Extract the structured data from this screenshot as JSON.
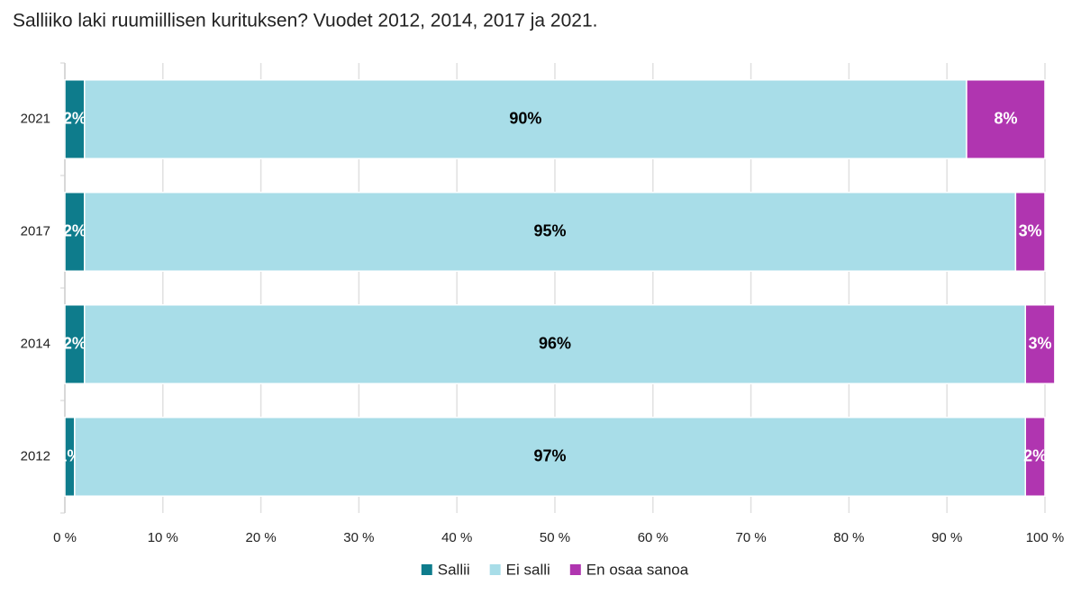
{
  "chart_data": {
    "type": "stacked_bar_horizontal",
    "title": "Salliiko laki ruumiillisen kurituksen? Vuodet 2012, 2014, 2017 ja 2021.",
    "categories": [
      "2021",
      "2017",
      "2014",
      "2012"
    ],
    "series": [
      {
        "name": "Sallii",
        "color": "#0e7c8c",
        "label_color": "#ffffff",
        "values": [
          2,
          2,
          2,
          1
        ],
        "value_labels": [
          "2%",
          "2%",
          "2%",
          "1%"
        ]
      },
      {
        "name": "Ei salli",
        "color": "#a8dde8",
        "label_color": "#000000",
        "values": [
          90,
          95,
          96,
          97
        ],
        "value_labels": [
          "90%",
          "95%",
          "96%",
          "97%"
        ]
      },
      {
        "name": "En osaa sanoa",
        "color": "#b035b0",
        "label_color": "#ffffff",
        "values": [
          8,
          3,
          3,
          2
        ],
        "value_labels": [
          "8%",
          "3%",
          "3%",
          "2%"
        ]
      }
    ],
    "xlim": [
      0,
      100
    ],
    "xticks": [
      {
        "value": 0,
        "label": "0 %"
      },
      {
        "value": 10,
        "label": "10 %"
      },
      {
        "value": 20,
        "label": "20 %"
      },
      {
        "value": 30,
        "label": "30 %"
      },
      {
        "value": 40,
        "label": "40 %"
      },
      {
        "value": 50,
        "label": "50 %"
      },
      {
        "value": 60,
        "label": "60 %"
      },
      {
        "value": 70,
        "label": "70 %"
      },
      {
        "value": 80,
        "label": "80 %"
      },
      {
        "value": 90,
        "label": "90 %"
      },
      {
        "value": 100,
        "label": "100 %"
      }
    ],
    "grid": true,
    "legend": "bottom"
  }
}
